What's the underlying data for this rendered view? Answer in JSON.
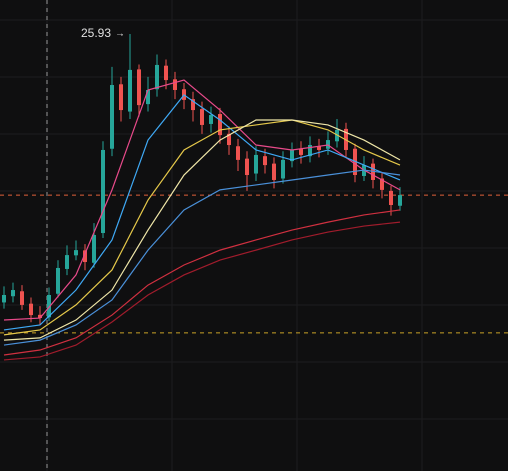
{
  "chart_data": {
    "type": "candlestick",
    "ylim": [
      8.3,
      27.3
    ],
    "up_color": "#26a69a",
    "down_color": "#ef5350",
    "open": [
      15.1,
      15.35,
      15.55,
      15.05,
      14.6,
      14.5,
      15.45,
      16.45,
      17.0,
      17.2,
      16.7,
      17.9,
      21.3,
      23.9,
      22.8,
      24.5,
      23.1,
      23.7,
      24.65,
      24.1,
      23.7,
      23.3,
      22.9,
      22.3,
      22.7,
      21.9,
      21.4,
      20.9,
      20.3,
      21.0,
      20.7,
      20.1,
      20.8,
      21.3,
      21.0,
      21.4,
      21.3,
      21.6,
      22.1,
      21.3,
      20.2,
      20.7,
      20.1,
      19.6,
      19.0
    ],
    "high": [
      15.75,
      15.9,
      15.8,
      15.3,
      14.95,
      15.7,
      16.8,
      17.4,
      17.6,
      17.45,
      18.3,
      21.6,
      24.6,
      24.2,
      25.93,
      24.7,
      24.2,
      25.1,
      24.9,
      24.4,
      23.95,
      23.6,
      23.2,
      23.0,
      22.95,
      22.2,
      21.7,
      21.2,
      21.4,
      21.3,
      20.95,
      21.2,
      21.55,
      21.6,
      21.8,
      21.7,
      22.0,
      22.5,
      22.35,
      21.5,
      21.0,
      20.9,
      20.35,
      19.8,
      19.75
    ],
    "low": [
      14.85,
      15.1,
      14.8,
      14.3,
      14.2,
      14.35,
      15.3,
      16.2,
      16.8,
      16.4,
      16.5,
      17.7,
      21.0,
      22.4,
      22.5,
      22.6,
      22.8,
      23.4,
      23.7,
      23.3,
      22.9,
      22.4,
      21.9,
      21.95,
      21.5,
      21.05,
      20.4,
      19.6,
      20.0,
      20.3,
      19.7,
      19.9,
      20.55,
      20.7,
      20.75,
      20.95,
      21.05,
      21.35,
      20.95,
      19.95,
      20.0,
      19.7,
      19.3,
      18.6,
      18.8
    ],
    "close": [
      15.4,
      15.6,
      15.0,
      14.59,
      14.47,
      15.4,
      16.49,
      17.01,
      17.21,
      16.73,
      17.82,
      21.25,
      23.87,
      22.86,
      24.48,
      23.06,
      23.67,
      24.68,
      24.07,
      23.67,
      23.27,
      22.86,
      22.26,
      22.66,
      21.85,
      21.45,
      20.85,
      20.24,
      21.05,
      20.64,
      20.04,
      20.85,
      21.25,
      21.05,
      21.45,
      21.25,
      21.65,
      22.06,
      21.25,
      20.24,
      20.64,
      20.04,
      19.64,
      19.03,
      19.43
    ],
    "series": [
      {
        "color": "#e84a8a",
        "x": [
          0,
          4,
          8,
          12,
          16,
          20,
          24,
          28,
          32,
          36,
          40,
          44
        ],
        "values": [
          14.39,
          14.47,
          16.21,
          19.64,
          23.67,
          24.07,
          22.86,
          21.45,
          21.25,
          21.45,
          20.44,
          19.64
        ]
      },
      {
        "color": "#3fa9f5",
        "x": [
          0,
          4,
          8,
          12,
          16,
          20,
          24,
          28,
          32,
          36,
          40,
          44
        ],
        "values": [
          13.99,
          14.19,
          15.6,
          17.62,
          21.65,
          23.47,
          22.46,
          21.25,
          20.85,
          21.25,
          20.64,
          20.04
        ]
      },
      {
        "color": "#e5c84a",
        "x": [
          0,
          4,
          8,
          12,
          16,
          20,
          24,
          28,
          32,
          36,
          40,
          44
        ],
        "values": [
          13.79,
          13.99,
          15.0,
          16.41,
          19.23,
          21.25,
          22.06,
          22.26,
          22.46,
          22.06,
          21.25,
          20.64
        ]
      },
      {
        "color": "#efe6a8",
        "x": [
          0,
          4,
          8,
          12,
          16,
          20,
          24,
          28,
          32,
          36,
          40,
          44
        ],
        "values": [
          13.58,
          13.67,
          14.39,
          15.6,
          18.02,
          20.24,
          21.65,
          22.46,
          22.46,
          22.26,
          21.65,
          20.85
        ]
      },
      {
        "color": "#4a90d9",
        "x": [
          0,
          4,
          8,
          12,
          16,
          20,
          24,
          28,
          32,
          36,
          40,
          44
        ],
        "values": [
          13.38,
          13.58,
          14.19,
          15.2,
          17.21,
          18.83,
          19.64,
          19.84,
          20.04,
          20.24,
          20.44,
          20.24
        ]
      },
      {
        "color": "#d03040",
        "x": [
          0,
          4,
          8,
          12,
          16,
          20,
          24,
          28,
          32,
          36,
          40,
          44
        ],
        "values": [
          12.98,
          13.18,
          13.67,
          14.59,
          15.8,
          16.61,
          17.21,
          17.62,
          18.02,
          18.34,
          18.63,
          18.83
        ]
      },
      {
        "color": "#a01c2c",
        "x": [
          0,
          4,
          8,
          12,
          16,
          20,
          24,
          28,
          32,
          36,
          40,
          44
        ],
        "values": [
          12.78,
          12.9,
          13.38,
          14.31,
          15.4,
          16.21,
          16.81,
          17.21,
          17.62,
          17.94,
          18.18,
          18.34
        ]
      }
    ],
    "hlines": [
      {
        "value": 19.43,
        "color": "#e0603a"
      },
      {
        "value": 13.87,
        "color": "#c9a227"
      }
    ]
  }
}
